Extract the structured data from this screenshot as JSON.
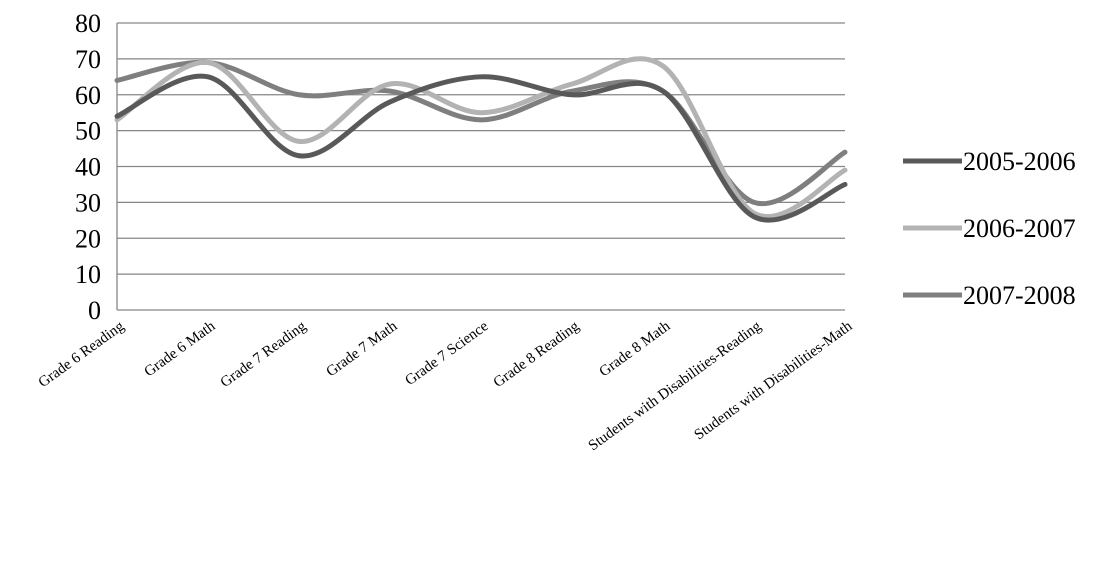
{
  "chart_data": {
    "type": "line",
    "title": "",
    "xlabel": "",
    "ylabel": "",
    "smooth": true,
    "grid": true,
    "legend_position": "right",
    "ylim": [
      0,
      80
    ],
    "y_ticks": [
      "0",
      "10",
      "20",
      "30",
      "40",
      "50",
      "60",
      "70",
      "80"
    ],
    "categories": [
      "Grade 6 Reading",
      "Grade 6 Math",
      "Grade 7 Reading",
      "Grade 7 Math",
      "Grade 7 Science",
      "Grade 8 Reading",
      "Grade 8 Math",
      "Students with Disabilities-Reading",
      "Students with Disabilities-Math"
    ],
    "series": [
      {
        "name": "2005-2006",
        "color": "#595959",
        "values": [
          54,
          65,
          43,
          58,
          65,
          60,
          61,
          26,
          35
        ]
      },
      {
        "name": "2006-2007",
        "color": "#b3b3b3",
        "values": [
          53,
          69,
          47,
          63,
          55,
          63,
          68,
          27,
          39
        ]
      },
      {
        "name": "2007-2008",
        "color": "#7f7f7f",
        "values": [
          64,
          69,
          60,
          61,
          53,
          61,
          61,
          30,
          44
        ]
      }
    ]
  }
}
